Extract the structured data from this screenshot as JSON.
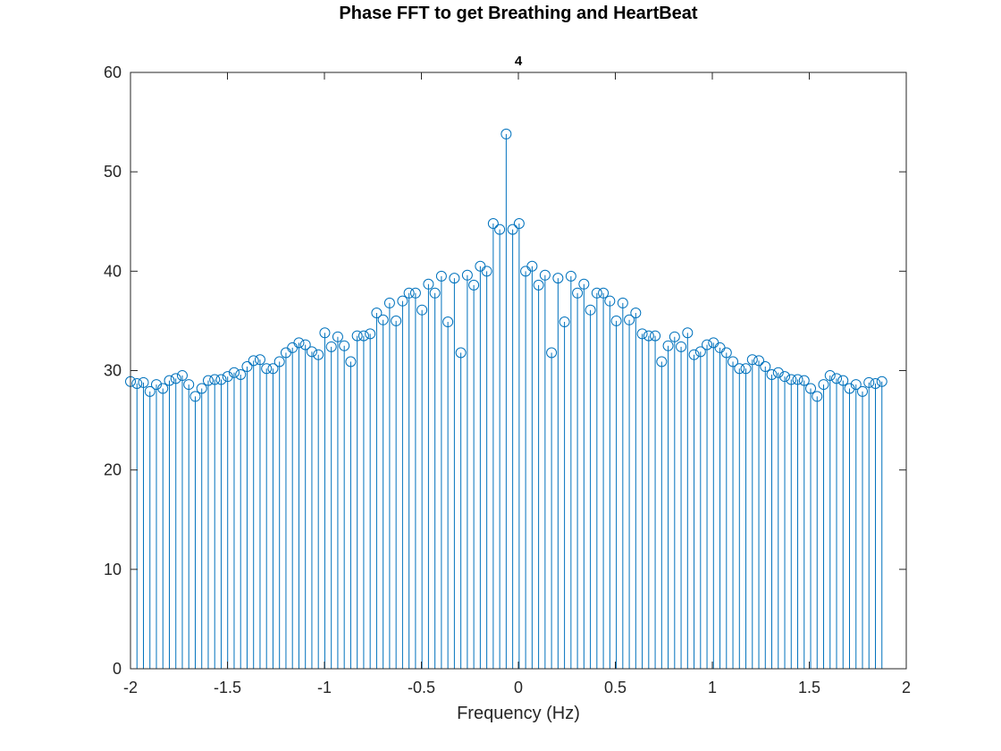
{
  "figure_title": "Phase FFT to get Breathing and HeartBeat",
  "colors": {
    "series": "#0072BD",
    "axes": "#262626",
    "background": "#ffffff"
  },
  "chart_data": {
    "type": "stem",
    "title": "4",
    "xlabel": "Frequency (Hz)",
    "ylabel": "",
    "xlim": [
      -2,
      2
    ],
    "ylim": [
      0,
      60
    ],
    "xticks": [
      -2,
      -1.5,
      -1,
      -0.5,
      0,
      0.5,
      1,
      1.5,
      2
    ],
    "xtick_labels": [
      "-2",
      "-1.5",
      "-1",
      "-0.5",
      "0",
      "0.5",
      "1",
      "1.5",
      "2"
    ],
    "yticks": [
      0,
      10,
      20,
      30,
      40,
      50,
      60
    ],
    "ytick_labels": [
      "0",
      "10",
      "20",
      "30",
      "40",
      "50",
      "60"
    ],
    "marker": "circle",
    "grid": false,
    "x_start": -2.0,
    "x_step": 0.0334,
    "values": [
      28.9,
      28.7,
      28.8,
      27.9,
      28.6,
      28.2,
      29.0,
      29.2,
      29.5,
      28.6,
      27.4,
      28.2,
      29.0,
      29.1,
      29.1,
      29.4,
      29.8,
      29.6,
      30.4,
      31.0,
      31.1,
      30.2,
      30.2,
      30.9,
      31.8,
      32.3,
      32.8,
      32.6,
      31.9,
      31.6,
      33.8,
      32.4,
      33.4,
      32.5,
      30.9,
      33.5,
      33.5,
      33.7,
      35.8,
      35.1,
      36.8,
      35.0,
      37.0,
      37.8,
      37.8,
      36.1,
      38.7,
      37.8,
      39.5,
      34.9,
      39.3,
      31.8,
      39.6,
      38.6,
      40.5,
      40.0,
      44.8,
      44.2,
      53.8,
      44.2,
      44.8,
      40.0,
      40.5,
      38.6,
      39.6,
      31.8,
      39.3,
      34.9,
      39.5,
      37.8,
      38.7,
      36.1,
      37.8,
      37.8,
      37.0,
      35.0,
      36.8,
      35.1,
      35.8,
      33.7,
      33.5,
      33.5,
      30.9,
      32.5,
      33.4,
      32.4,
      33.8,
      31.6,
      31.9,
      32.6,
      32.8,
      32.3,
      31.8,
      30.9,
      30.2,
      30.2,
      31.1,
      31.0,
      30.4,
      29.6,
      29.8,
      29.4,
      29.1,
      29.1,
      29.0,
      28.2,
      27.4,
      28.6,
      29.5,
      29.2,
      29.0,
      28.2,
      28.6,
      27.9,
      28.8,
      28.7,
      28.9
    ]
  }
}
